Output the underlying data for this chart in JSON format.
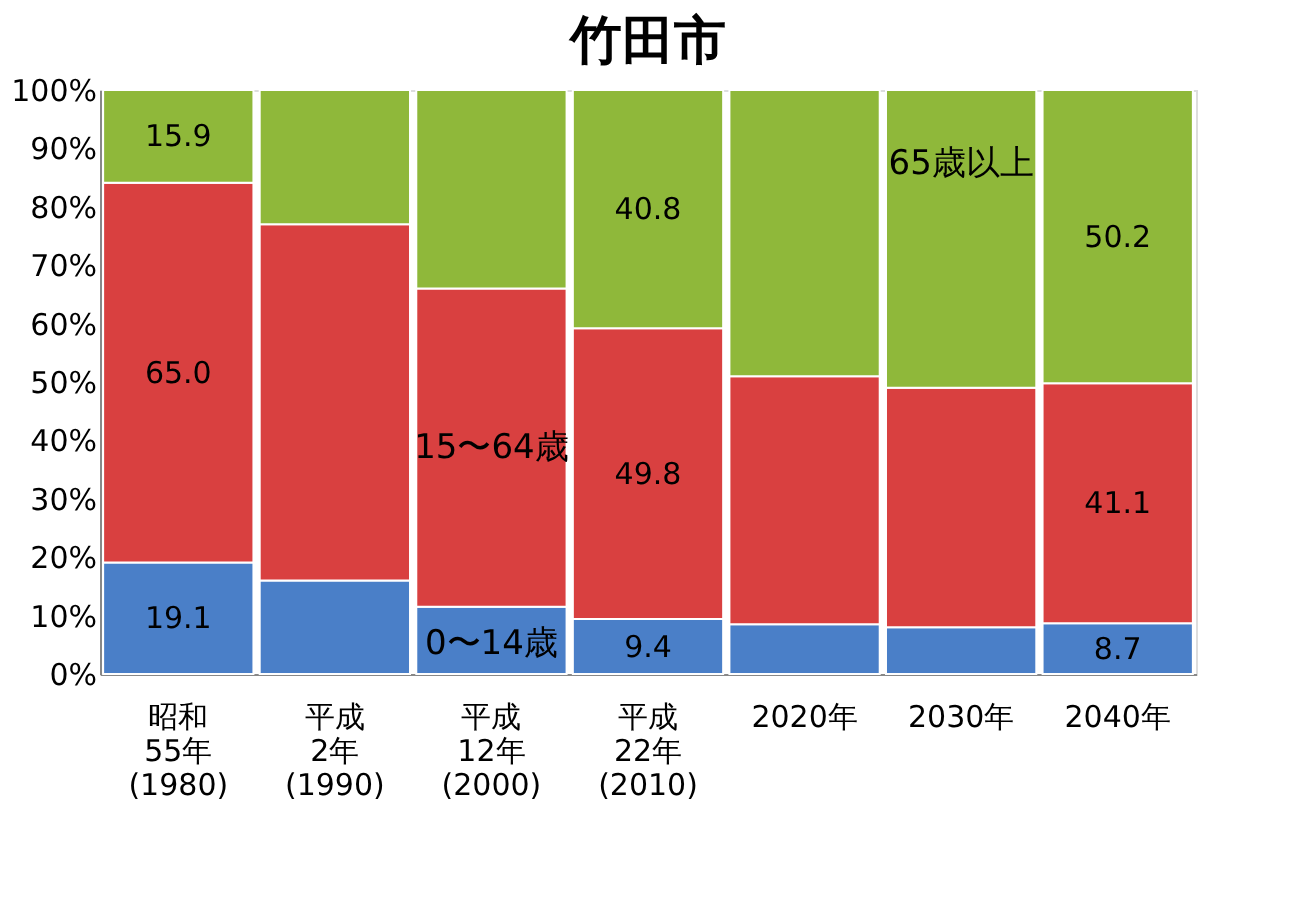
{
  "chart_data": {
    "type": "bar",
    "stacked": true,
    "title": "竹田市",
    "categories": [
      "昭和\n55年\n(1980)",
      "平成\n2年\n(1990)",
      "平成\n12年\n(2000)",
      "平成\n22年\n(2010)",
      "2020年",
      "2030年",
      "2040年"
    ],
    "ylim": [
      0,
      100
    ],
    "yticks": [
      {
        "value": 0,
        "label": "0%"
      },
      {
        "value": 10,
        "label": "10%"
      },
      {
        "value": 20,
        "label": "20%"
      },
      {
        "value": 30,
        "label": "30%"
      },
      {
        "value": 40,
        "label": "40%"
      },
      {
        "value": 50,
        "label": "50%"
      },
      {
        "value": 60,
        "label": "60%"
      },
      {
        "value": 70,
        "label": "70%"
      },
      {
        "value": 80,
        "label": "80%"
      },
      {
        "value": 90,
        "label": "90%"
      },
      {
        "value": 100,
        "label": "100%"
      }
    ],
    "grid": false,
    "legend": false,
    "series": [
      {
        "name": "0〜14歳",
        "color": "#4a7fc8",
        "values": [
          19.1,
          16,
          11.5,
          9.4,
          8.5,
          8,
          8.7
        ],
        "value_labels": [
          "19.1",
          null,
          null,
          "9.4",
          null,
          null,
          "8.7"
        ]
      },
      {
        "name": "15〜64歳",
        "color": "#d94040",
        "values": [
          65.0,
          61,
          54.5,
          49.8,
          42.5,
          41,
          41.1
        ],
        "value_labels": [
          "65.0",
          null,
          null,
          "49.8",
          null,
          null,
          "41.1"
        ]
      },
      {
        "name": "65歳以上",
        "color": "#8fb83a",
        "values": [
          15.9,
          23,
          34,
          40.8,
          49,
          51,
          50.2
        ],
        "value_labels": [
          "15.9",
          null,
          null,
          "40.8",
          null,
          null,
          "50.2"
        ]
      }
    ]
  }
}
